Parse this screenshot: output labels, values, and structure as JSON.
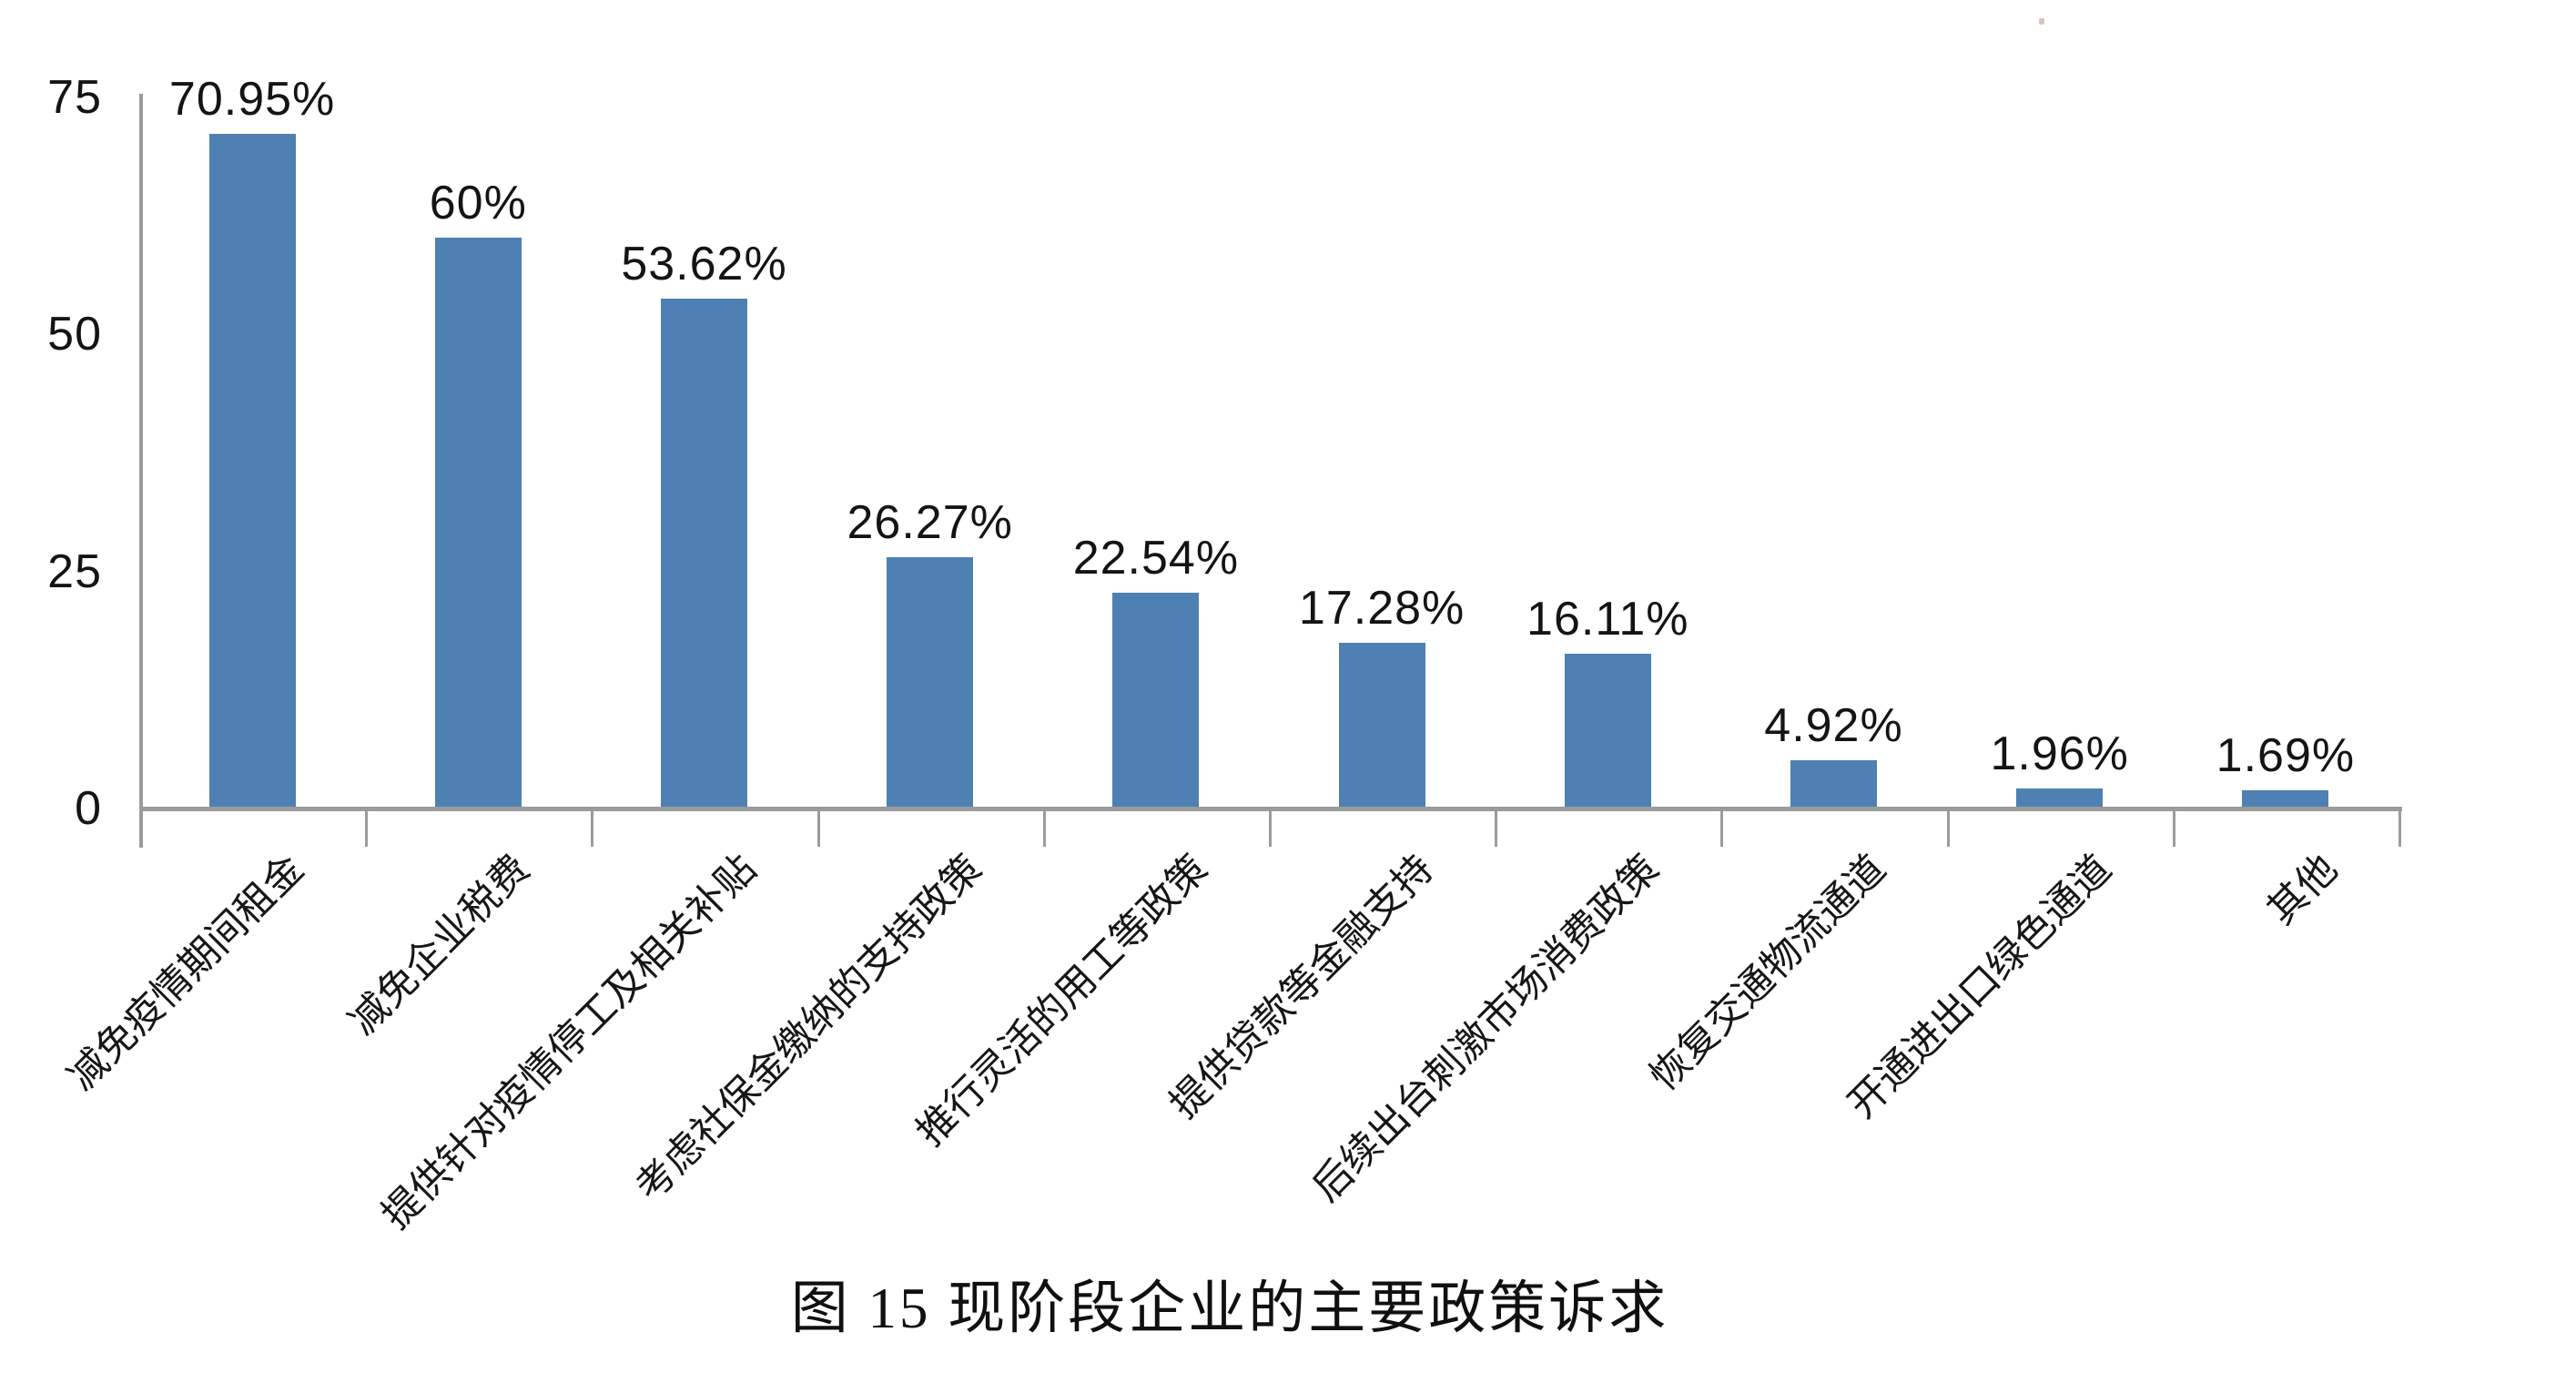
{
  "figure": {
    "background": "#ffffff",
    "bar_color": "#4E80B4",
    "axis_color": "#9b9b9b",
    "text_color": "#141414"
  },
  "chart_data": {
    "type": "bar",
    "title": "图 15  现阶段企业的主要政策诉求",
    "categories": [
      "减免疫情期间租金",
      "减免企业税费",
      "提供针对疫情停工及相关补贴",
      "考虑社保金缴纳的支持政策",
      "推行灵活的用工等政策",
      "提供贷款等金融支持",
      "后续出台刺激市场消费政策",
      "恢复交通物流通道",
      "开通进出口绿色通道",
      "其他"
    ],
    "values": [
      70.95,
      60,
      53.62,
      26.27,
      22.54,
      17.28,
      16.11,
      4.92,
      1.96,
      1.69
    ],
    "value_labels": [
      "70.95%",
      "60%",
      "53.62%",
      "26.27%",
      "22.54%",
      "17.28%",
      "16.11%",
      "4.92%",
      "1.96%",
      "1.69%"
    ],
    "xlabel": "",
    "ylabel": "",
    "ylim": [
      0,
      75
    ],
    "yticks": [
      0,
      25,
      50,
      75
    ],
    "grid": false,
    "legend": null,
    "bar_color": "#4E80B4",
    "x_tick_label_rotation_deg": 45
  }
}
